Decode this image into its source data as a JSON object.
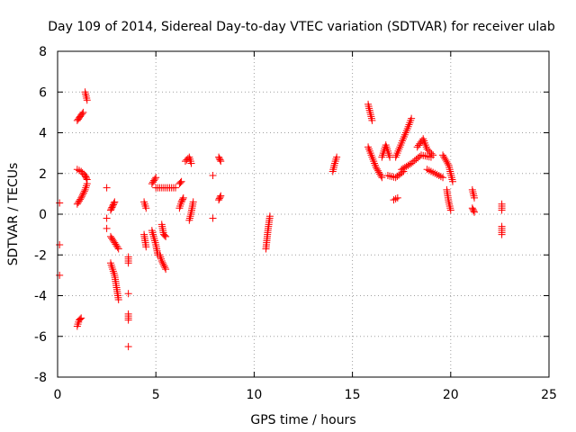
{
  "chart_data": {
    "type": "scatter",
    "title": "Day 109 of 2014, Sidereal Day-to-day VTEC variation (SDTVAR) for receiver ulab",
    "xlabel": "GPS time / hours",
    "ylabel": "SDTVAR / TECUs",
    "xlim": [
      0,
      25
    ],
    "ylim": [
      -8,
      8
    ],
    "xticks": [
      0,
      5,
      10,
      15,
      20,
      25
    ],
    "yticks": [
      -8,
      -6,
      -4,
      -2,
      0,
      2,
      4,
      6,
      8
    ],
    "xtick_labels": [
      "0",
      "5",
      "10",
      "15",
      "20",
      "25"
    ],
    "ytick_labels": [
      "-8",
      "-6",
      "-4",
      "-2",
      "0",
      "2",
      "4",
      "6",
      "8"
    ],
    "grid": true,
    "marker": "+",
    "color": "#ff0000",
    "segments": [
      [
        [
          0.1,
          0.55
        ]
      ],
      [
        [
          0.1,
          -1.5
        ]
      ],
      [
        [
          0.1,
          -3.0
        ]
      ],
      [
        [
          1.0,
          4.6
        ],
        [
          1.15,
          4.8
        ],
        [
          1.3,
          5.0
        ]
      ],
      [
        [
          1.4,
          6.0
        ],
        [
          1.45,
          5.8
        ],
        [
          1.5,
          5.6
        ]
      ],
      [
        [
          1.0,
          2.2
        ],
        [
          1.2,
          2.1
        ],
        [
          1.4,
          1.9
        ],
        [
          1.5,
          1.7
        ]
      ],
      [
        [
          1.0,
          0.5
        ],
        [
          1.2,
          0.8
        ],
        [
          1.4,
          1.2
        ],
        [
          1.5,
          1.5
        ]
      ],
      [
        [
          1.0,
          -5.5
        ],
        [
          1.1,
          -5.2
        ],
        [
          1.2,
          -5.1
        ]
      ],
      [
        [
          2.5,
          1.3
        ]
      ],
      [
        [
          2.5,
          -0.2
        ]
      ],
      [
        [
          2.5,
          -0.7
        ]
      ],
      [
        [
          2.7,
          0.2
        ],
        [
          2.8,
          0.4
        ],
        [
          2.9,
          0.6
        ]
      ],
      [
        [
          2.7,
          -1.1
        ],
        [
          2.9,
          -1.4
        ],
        [
          3.1,
          -1.7
        ]
      ],
      [
        [
          2.7,
          -2.4
        ],
        [
          2.9,
          -3.0
        ],
        [
          3.0,
          -3.6
        ],
        [
          3.1,
          -4.2
        ]
      ],
      [
        [
          3.6,
          -2.1
        ],
        [
          3.6,
          -2.4
        ]
      ],
      [
        [
          3.6,
          -3.9
        ]
      ],
      [
        [
          3.6,
          -4.9
        ],
        [
          3.6,
          -5.2
        ]
      ],
      [
        [
          3.6,
          -6.5
        ]
      ],
      [
        [
          4.4,
          0.6
        ],
        [
          4.5,
          0.3
        ]
      ],
      [
        [
          4.4,
          -1.0
        ],
        [
          4.45,
          -1.3
        ],
        [
          4.5,
          -1.6
        ]
      ],
      [
        [
          4.8,
          1.5
        ],
        [
          5.0,
          1.8
        ]
      ],
      [
        [
          4.8,
          -0.8
        ],
        [
          5.0,
          -1.5
        ],
        [
          5.1,
          -2.0
        ]
      ],
      [
        [
          5.3,
          -0.5
        ],
        [
          5.4,
          -1.0
        ],
        [
          5.5,
          -1.1
        ]
      ],
      [
        [
          5.2,
          -2.0
        ],
        [
          5.3,
          -2.3
        ],
        [
          5.5,
          -2.7
        ]
      ],
      [
        [
          5.0,
          1.3
        ],
        [
          5.5,
          1.3
        ],
        [
          6.0,
          1.3
        ]
      ],
      [
        [
          6.2,
          0.3
        ],
        [
          6.3,
          0.6
        ],
        [
          6.4,
          0.8
        ]
      ],
      [
        [
          6.2,
          1.5
        ],
        [
          6.3,
          1.6
        ]
      ],
      [
        [
          6.5,
          2.6
        ],
        [
          6.7,
          2.8
        ],
        [
          6.8,
          2.5
        ]
      ],
      [
        [
          6.7,
          -0.3
        ],
        [
          6.8,
          0.1
        ],
        [
          6.9,
          0.6
        ]
      ],
      [
        [
          7.9,
          1.9
        ]
      ],
      [
        [
          7.9,
          -0.2
        ]
      ],
      [
        [
          8.2,
          0.7
        ],
        [
          8.3,
          0.9
        ]
      ],
      [
        [
          8.2,
          2.8
        ],
        [
          8.3,
          2.6
        ]
      ],
      [
        [
          10.6,
          -1.7
        ],
        [
          10.7,
          -0.8
        ],
        [
          10.8,
          -0.1
        ]
      ],
      [
        [
          14.0,
          2.1
        ],
        [
          14.1,
          2.5
        ],
        [
          14.2,
          2.8
        ]
      ],
      [
        [
          15.8,
          5.4
        ],
        [
          15.9,
          5.0
        ],
        [
          16.0,
          4.6
        ]
      ],
      [
        [
          15.8,
          3.3
        ],
        [
          16.0,
          2.8
        ],
        [
          16.2,
          2.3
        ],
        [
          16.5,
          1.8
        ]
      ],
      [
        [
          16.5,
          2.8
        ],
        [
          16.7,
          3.4
        ],
        [
          16.9,
          2.8
        ]
      ],
      [
        [
          16.8,
          1.9
        ],
        [
          17.2,
          1.8
        ],
        [
          17.6,
          2.1
        ]
      ],
      [
        [
          17.1,
          0.7
        ],
        [
          17.3,
          0.8
        ]
      ],
      [
        [
          17.2,
          2.8
        ],
        [
          17.5,
          3.5
        ],
        [
          17.8,
          4.2
        ],
        [
          18.0,
          4.7
        ]
      ],
      [
        [
          17.5,
          2.2
        ],
        [
          18.0,
          2.5
        ],
        [
          18.5,
          2.9
        ],
        [
          19.0,
          2.8
        ]
      ],
      [
        [
          18.3,
          3.3
        ],
        [
          18.6,
          3.7
        ],
        [
          18.8,
          3.2
        ],
        [
          19.1,
          2.9
        ]
      ],
      [
        [
          18.8,
          2.2
        ],
        [
          19.2,
          2.0
        ],
        [
          19.6,
          1.8
        ]
      ],
      [
        [
          19.6,
          2.9
        ],
        [
          19.9,
          2.4
        ],
        [
          20.1,
          1.6
        ]
      ],
      [
        [
          19.8,
          1.2
        ],
        [
          19.9,
          0.6
        ],
        [
          20.0,
          0.2
        ]
      ],
      [
        [
          21.1,
          1.2
        ],
        [
          21.2,
          0.8
        ]
      ],
      [
        [
          21.1,
          0.3
        ],
        [
          21.2,
          0.1
        ]
      ],
      [
        [
          22.6,
          0.5
        ],
        [
          22.6,
          0.2
        ]
      ],
      [
        [
          22.6,
          -0.6
        ],
        [
          22.6,
          -1.0
        ]
      ]
    ]
  }
}
